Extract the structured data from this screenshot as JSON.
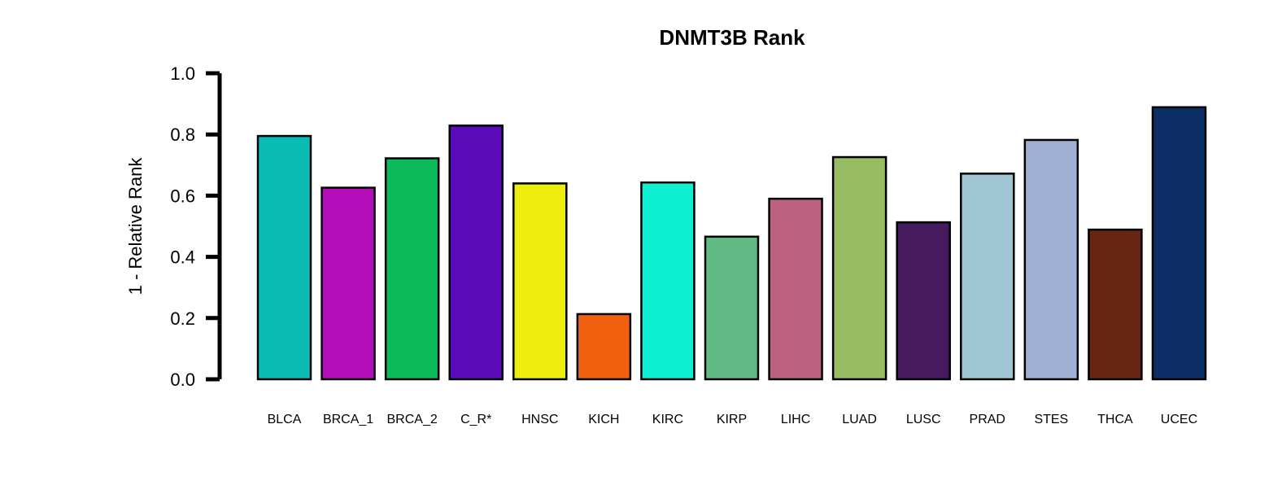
{
  "chart_data": {
    "type": "bar",
    "title": "DNMT3B Rank",
    "xlabel": "",
    "ylabel": "1 - Relative Rank",
    "ylim": [
      0,
      1
    ],
    "yticks": [
      "0.0",
      "0.2",
      "0.4",
      "0.6",
      "0.8",
      "1.0"
    ],
    "grid": false,
    "legend": "none",
    "categories": [
      "BLCA",
      "BRCA_1",
      "BRCA_2",
      "C_R*",
      "HNSC",
      "KICH",
      "KIRC",
      "KIRP",
      "LIHC",
      "LUAD",
      "LUSC",
      "PRAD",
      "STES",
      "THCA",
      "UCEC"
    ],
    "values": [
      0.795,
      0.626,
      0.722,
      0.829,
      0.64,
      0.213,
      0.643,
      0.466,
      0.59,
      0.726,
      0.513,
      0.672,
      0.782,
      0.489,
      0.889
    ],
    "colors": [
      "#0bbcb5",
      "#b20cbb",
      "#0bb85a",
      "#5c0bba",
      "#eeee0d",
      "#f1600f",
      "#0ff0d3",
      "#61b983",
      "#bc6280",
      "#97bc62",
      "#461a5f",
      "#a0c5d3",
      "#9fb0d3",
      "#662612",
      "#0d2e64"
    ]
  }
}
